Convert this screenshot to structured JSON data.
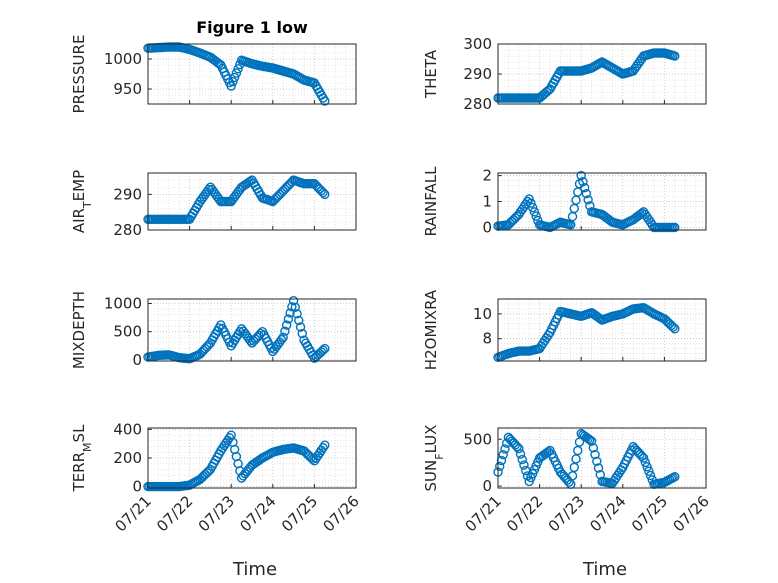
{
  "chart_data": [
    {
      "type": "scatter",
      "title": "Figure 1 low",
      "ylabel": "PRESSURE",
      "ylim": [
        925,
        1025
      ],
      "yticks": [
        950,
        1000
      ],
      "x": [
        "07/21 00:00",
        "07/21 06:00",
        "07/21 12:00",
        "07/21 18:00",
        "07/22 00:00",
        "07/22 06:00",
        "07/22 12:00",
        "07/22 18:00",
        "07/23 00:00",
        "07/23 06:00",
        "07/23 12:00",
        "07/23 18:00",
        "07/24 00:00",
        "07/24 06:00",
        "07/24 12:00",
        "07/24 18:00",
        "07/25 00:00",
        "07/25 06:00"
      ],
      "values": [
        1018,
        1019,
        1020,
        1020,
        1016,
        1010,
        1003,
        990,
        955,
        998,
        992,
        988,
        985,
        980,
        975,
        965,
        960,
        930
      ]
    },
    {
      "type": "scatter",
      "ylabel": "THETA",
      "ylim": [
        280,
        300
      ],
      "yticks": [
        280,
        290,
        300
      ],
      "x": [
        "07/21 00:00",
        "07/21 06:00",
        "07/21 12:00",
        "07/21 18:00",
        "07/22 00:00",
        "07/22 06:00",
        "07/22 12:00",
        "07/22 18:00",
        "07/23 00:00",
        "07/23 06:00",
        "07/23 12:00",
        "07/23 18:00",
        "07/24 00:00",
        "07/24 06:00",
        "07/24 12:00",
        "07/24 18:00",
        "07/25 00:00",
        "07/25 06:00"
      ],
      "values": [
        282,
        282,
        282,
        282,
        282,
        285,
        291,
        291,
        291,
        292,
        294,
        292,
        290,
        291,
        296,
        297,
        297,
        296
      ]
    },
    {
      "type": "scatter",
      "ylabel": "AIR_TEMP",
      "ylim": [
        280,
        296
      ],
      "yticks": [
        280,
        290
      ],
      "x": [
        "07/21 00:00",
        "07/21 06:00",
        "07/21 12:00",
        "07/21 18:00",
        "07/22 00:00",
        "07/22 06:00",
        "07/22 12:00",
        "07/22 18:00",
        "07/23 00:00",
        "07/23 06:00",
        "07/23 12:00",
        "07/23 18:00",
        "07/24 00:00",
        "07/24 06:00",
        "07/24 12:00",
        "07/24 18:00",
        "07/25 00:00",
        "07/25 06:00"
      ],
      "values": [
        283,
        283,
        283,
        283,
        283,
        288,
        292,
        288,
        288,
        292,
        294,
        289,
        288,
        291,
        294,
        293,
        293,
        290
      ]
    },
    {
      "type": "scatter",
      "ylabel": "RAINFALL",
      "ylim": [
        -0.1,
        2.1
      ],
      "yticks": [
        0,
        1,
        2
      ],
      "x": [
        "07/21 00:00",
        "07/21 06:00",
        "07/21 12:00",
        "07/21 18:00",
        "07/22 00:00",
        "07/22 06:00",
        "07/22 12:00",
        "07/22 18:00",
        "07/23 00:00",
        "07/23 06:00",
        "07/23 12:00",
        "07/23 18:00",
        "07/24 00:00",
        "07/24 06:00",
        "07/24 12:00",
        "07/24 18:00",
        "07/25 00:00",
        "07/25 06:00"
      ],
      "values": [
        0.05,
        0.1,
        0.5,
        1.1,
        0.1,
        0.0,
        0.2,
        0.1,
        2.0,
        0.6,
        0.5,
        0.2,
        0.1,
        0.3,
        0.6,
        0.0,
        0.0,
        0.0
      ]
    },
    {
      "type": "scatter",
      "ylabel": "MIXDEPTH",
      "ylim": [
        -20,
        1080
      ],
      "yticks": [
        0,
        500,
        1000
      ],
      "x": [
        "07/21 00:00",
        "07/21 06:00",
        "07/21 12:00",
        "07/21 18:00",
        "07/22 00:00",
        "07/22 06:00",
        "07/22 12:00",
        "07/22 18:00",
        "07/23 00:00",
        "07/23 06:00",
        "07/23 12:00",
        "07/23 18:00",
        "07/24 00:00",
        "07/24 06:00",
        "07/24 12:00",
        "07/24 18:00",
        "07/25 00:00",
        "07/25 06:00"
      ],
      "values": [
        50,
        80,
        90,
        40,
        20,
        100,
        300,
        620,
        250,
        550,
        300,
        500,
        150,
        400,
        1050,
        350,
        30,
        200
      ]
    },
    {
      "type": "scatter",
      "ylabel": "H2OMIXRA",
      "ylim": [
        6.2,
        11.2
      ],
      "yticks": [
        8,
        10
      ],
      "x": [
        "07/21 00:00",
        "07/21 06:00",
        "07/21 12:00",
        "07/21 18:00",
        "07/22 00:00",
        "07/22 06:00",
        "07/22 12:00",
        "07/22 18:00",
        "07/23 00:00",
        "07/23 06:00",
        "07/23 12:00",
        "07/23 18:00",
        "07/24 00:00",
        "07/24 06:00",
        "07/24 12:00",
        "07/24 18:00",
        "07/25 00:00",
        "07/25 06:00"
      ],
      "values": [
        6.5,
        6.8,
        7.0,
        7.0,
        7.2,
        8.5,
        10.2,
        10.0,
        9.8,
        10.1,
        9.5,
        9.8,
        10.0,
        10.4,
        10.5,
        10.0,
        9.6,
        8.8
      ]
    },
    {
      "type": "scatter",
      "ylabel": "TERR_MSL",
      "ylim": [
        -10,
        410
      ],
      "yticks": [
        0,
        200,
        400
      ],
      "x": [
        "07/21 00:00",
        "07/21 06:00",
        "07/21 12:00",
        "07/21 18:00",
        "07/22 00:00",
        "07/22 06:00",
        "07/22 12:00",
        "07/22 18:00",
        "07/23 00:00",
        "07/23 06:00",
        "07/23 12:00",
        "07/23 18:00",
        "07/24 00:00",
        "07/24 06:00",
        "07/24 12:00",
        "07/24 18:00",
        "07/25 00:00",
        "07/25 06:00"
      ],
      "values": [
        0,
        0,
        0,
        0,
        10,
        50,
        120,
        250,
        360,
        60,
        150,
        200,
        240,
        260,
        270,
        250,
        180,
        290
      ]
    },
    {
      "type": "scatter",
      "ylabel": "SUN_FLUX",
      "ylim": [
        -20,
        620
      ],
      "yticks": [
        0,
        500
      ],
      "x": [
        "07/21 00:00",
        "07/21 06:00",
        "07/21 12:00",
        "07/21 18:00",
        "07/22 00:00",
        "07/22 06:00",
        "07/22 12:00",
        "07/22 18:00",
        "07/23 00:00",
        "07/23 06:00",
        "07/23 12:00",
        "07/23 18:00",
        "07/24 00:00",
        "07/24 06:00",
        "07/24 12:00",
        "07/24 18:00",
        "07/25 00:00",
        "07/25 06:00"
      ],
      "values": [
        150,
        520,
        400,
        50,
        300,
        380,
        150,
        20,
        560,
        480,
        50,
        30,
        200,
        420,
        300,
        20,
        40,
        100
      ]
    }
  ],
  "shared_x": {
    "label": "Time",
    "range": [
      "07/21 00:00",
      "07/26 00:00"
    ],
    "ticks": [
      "07/21",
      "07/22",
      "07/23",
      "07/24",
      "07/25",
      "07/26"
    ]
  },
  "colors": {
    "marker": "#0072BD"
  }
}
